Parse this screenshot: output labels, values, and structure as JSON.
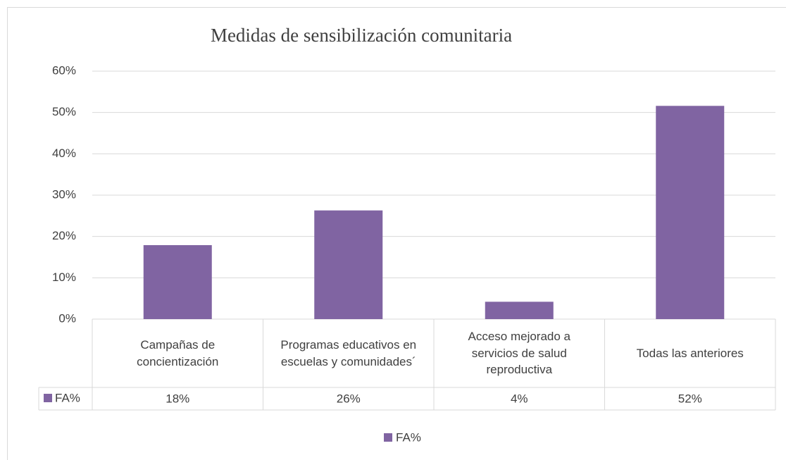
{
  "chart_data": {
    "type": "bar",
    "title": "Medidas de sensibilización comunitaria",
    "categories": [
      "Campañas de concientización",
      "Programas educativos en escuelas y comunidades´",
      "Acceso mejorado a servicios de salud reproductiva",
      "Todas las anteriores"
    ],
    "series": [
      {
        "name": "FA%",
        "color": "#8064a2",
        "values": [
          17.9,
          26.3,
          4.2,
          51.6
        ],
        "value_labels": [
          "18%",
          "26%",
          "4%",
          "52%"
        ]
      }
    ],
    "ylim": [
      0,
      60
    ],
    "yticks": [
      {
        "value": 0,
        "label": "0%"
      },
      {
        "value": 10,
        "label": "10%"
      },
      {
        "value": 20,
        "label": "20%"
      },
      {
        "value": 30,
        "label": "30%"
      },
      {
        "value": 40,
        "label": "40%"
      },
      {
        "value": 50,
        "label": "50%"
      },
      {
        "value": 60,
        "label": "60%"
      }
    ],
    "grid": true,
    "legend": "bottom"
  }
}
